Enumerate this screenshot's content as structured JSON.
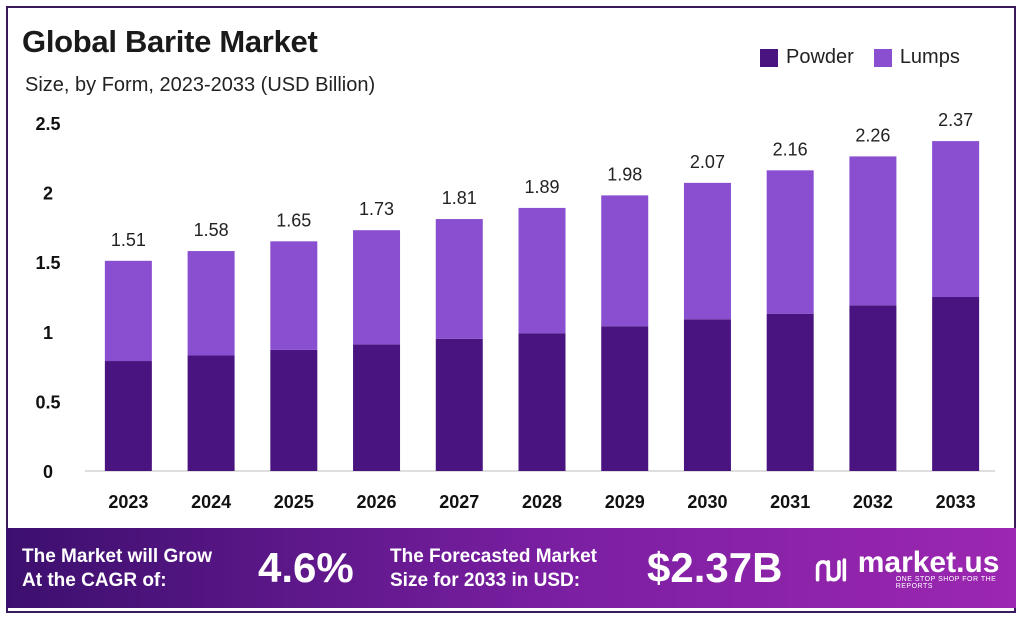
{
  "header": {
    "title": "Global Barite Market",
    "subtitle": "Size, by Form, 2023-2033 (USD Billion)"
  },
  "legend": [
    {
      "label": "Powder",
      "color": "#4a1480"
    },
    {
      "label": "Lumps",
      "color": "#8a4fd0"
    }
  ],
  "chart_data": {
    "type": "bar",
    "stacked": true,
    "categories": [
      "2023",
      "2024",
      "2025",
      "2026",
      "2027",
      "2028",
      "2029",
      "2030",
      "2031",
      "2032",
      "2033"
    ],
    "series": [
      {
        "name": "Powder",
        "color": "#4a1480",
        "values": [
          0.79,
          0.83,
          0.87,
          0.91,
          0.95,
          0.99,
          1.04,
          1.09,
          1.13,
          1.19,
          1.25
        ]
      },
      {
        "name": "Lumps",
        "color": "#8a4fd0",
        "values": [
          0.72,
          0.75,
          0.78,
          0.82,
          0.86,
          0.9,
          0.94,
          0.98,
          1.03,
          1.07,
          1.12
        ]
      }
    ],
    "totals": [
      1.51,
      1.58,
      1.65,
      1.73,
      1.81,
      1.89,
      1.98,
      2.07,
      2.16,
      2.26,
      2.37
    ],
    "total_labels": [
      "1.51",
      "1.58",
      "1.65",
      "1.73",
      "1.81",
      "1.89",
      "1.98",
      "2.07",
      "2.16",
      "2.26",
      "2.37"
    ],
    "yticks": [
      "0",
      "0.5",
      "1",
      "1.5",
      "2",
      "2.5"
    ],
    "ylim": [
      0,
      2.5
    ],
    "grid": false,
    "legend_position": "top-right"
  },
  "footer": {
    "cagr_text_line1": "The Market will Grow",
    "cagr_text_line2": "At the CAGR of:",
    "cagr_value": "4.6%",
    "forecast_text_line1": "The Forecasted Market",
    "forecast_text_line2": "Size for 2033 in USD:",
    "forecast_value": "$2.37B",
    "logo_name": "market.us",
    "logo_tagline": "ONE STOP SHOP FOR THE REPORTS",
    "logo_icon": "market-us-logo-icon"
  }
}
